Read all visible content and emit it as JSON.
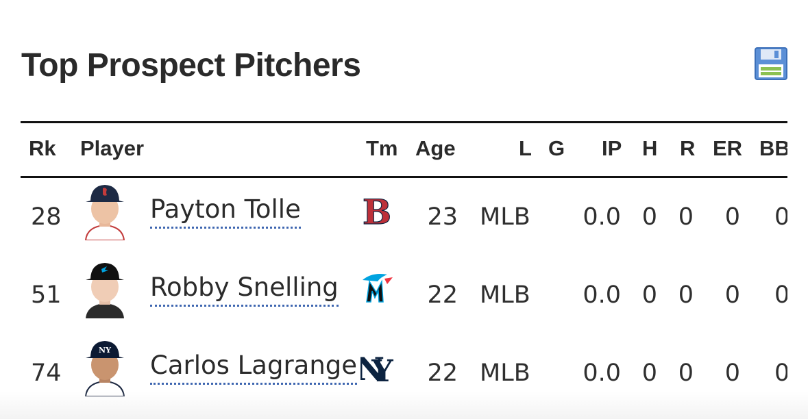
{
  "title": "Top Prospect Pitchers",
  "columns": {
    "rk": "Rk",
    "player": "Player",
    "tm": "Tm",
    "age": "Age",
    "l": "L",
    "g": "G",
    "ip": "IP",
    "h": "H",
    "r": "R",
    "er": "ER",
    "bb": "BB"
  },
  "rows": [
    {
      "rk": "28",
      "player": "Payton Tolle",
      "team_logo": "red-sox-logo",
      "age": "23",
      "level": "MLB",
      "ip": "0.0",
      "h": "0",
      "r": "0",
      "er": "0",
      "bb": "0"
    },
    {
      "rk": "51",
      "player": "Robby Snelling",
      "team_logo": "marlins-logo",
      "age": "22",
      "level": "MLB",
      "ip": "0.0",
      "h": "0",
      "r": "0",
      "er": "0",
      "bb": "0"
    },
    {
      "rk": "74",
      "player": "Carlos Lagrange",
      "team_logo": "yankees-logo",
      "age": "22",
      "level": "MLB",
      "ip": "0.0",
      "h": "0",
      "r": "0",
      "er": "0",
      "bb": "0"
    }
  ],
  "icons": {
    "save": "floppy-disk-icon"
  },
  "colors": {
    "link_underline": "#3e66b0",
    "red_sox": "#bd3039",
    "marlins": "#00a3e0",
    "yankees": "#0c2340"
  }
}
